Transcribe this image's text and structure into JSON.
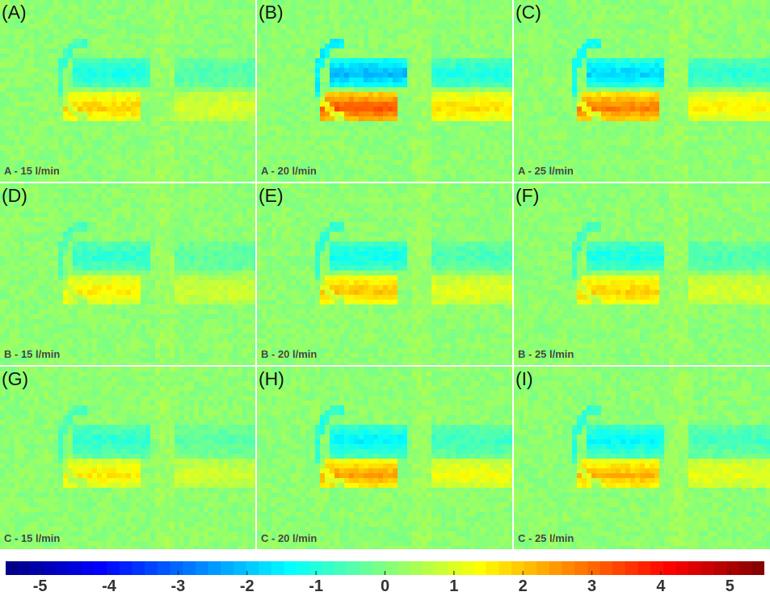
{
  "panels": [
    {
      "letter": "(A)",
      "condition": "A - 15 l/min",
      "intensity": 0.55
    },
    {
      "letter": "(B)",
      "condition": "A - 20 l/min",
      "intensity": 1.0
    },
    {
      "letter": "(C)",
      "condition": "A - 25 l/min",
      "intensity": 0.85
    },
    {
      "letter": "(D)",
      "condition": "B - 15 l/min",
      "intensity": 0.45
    },
    {
      "letter": "(E)",
      "condition": "B - 20 l/min",
      "intensity": 0.6
    },
    {
      "letter": "(F)",
      "condition": "B - 25 l/min",
      "intensity": 0.55
    },
    {
      "letter": "(G)",
      "condition": "C - 15 l/min",
      "intensity": 0.45
    },
    {
      "letter": "(H)",
      "condition": "C - 20 l/min",
      "intensity": 0.7
    },
    {
      "letter": "(I)",
      "condition": "C - 25 l/min",
      "intensity": 0.65
    }
  ],
  "colorbar": {
    "min": -5.5,
    "max": 5.5,
    "ticks": [
      "-5",
      "-4",
      "-3",
      "-2",
      "-1",
      "0",
      "1",
      "2",
      "3",
      "4",
      "5"
    ],
    "tick_values": [
      -5,
      -4,
      -3,
      -2,
      -1,
      0,
      1,
      2,
      3,
      4,
      5
    ],
    "colors": [
      "#00007f",
      "#0000ff",
      "#0080ff",
      "#00ffff",
      "#80ff80",
      "#ffff00",
      "#ff8000",
      "#ff0000",
      "#7f0000"
    ]
  }
}
